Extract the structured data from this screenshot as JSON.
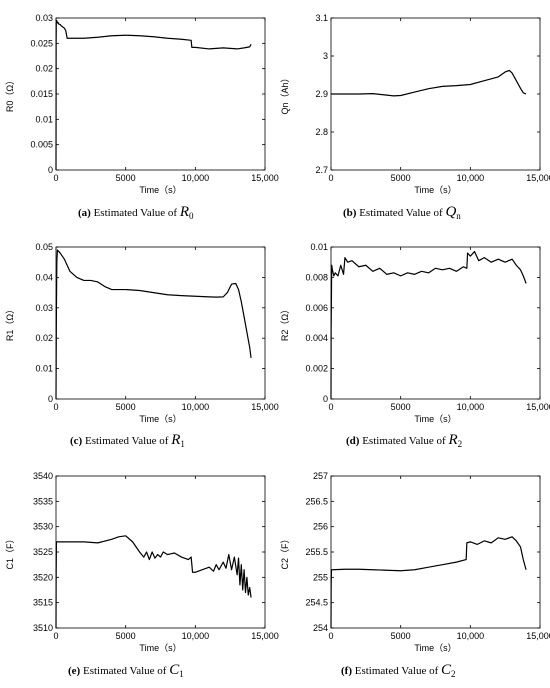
{
  "chart_data": [
    {
      "type": "line",
      "panel_label": "(a)",
      "caption_text": "Estimated Value of",
      "symbol": "R",
      "symbol_sub": "0",
      "ylabel": "R0（Ω）",
      "xlabel": "Time（s）",
      "xlim": [
        0,
        15000
      ],
      "ylim": [
        0,
        0.03
      ],
      "xticks": [
        0,
        5000,
        10000,
        15000
      ],
      "xtick_labels": [
        "0",
        "5000",
        "10,000",
        "15,000"
      ],
      "yticks": [
        0,
        0.005,
        0.01,
        0.015,
        0.02,
        0.025,
        0.03
      ],
      "ytick_labels": [
        "0",
        "0.005",
        "0.01",
        "0.015",
        "0.02",
        "0.025",
        "0.03"
      ],
      "series": [
        {
          "x": [
            0,
            5,
            10,
            20,
            50,
            80,
            120,
            150,
            200,
            300,
            400,
            500,
            600,
            700,
            800,
            1000,
            2000,
            3000,
            4000,
            5000,
            6000,
            7000,
            8000,
            9000,
            9700,
            9750,
            10000,
            11000,
            12000,
            13000,
            13500,
            13900,
            14000
          ],
          "y": [
            0,
            0.012,
            0.025,
            0.029,
            0.0295,
            0.0293,
            0.029,
            0.0291,
            0.0288,
            0.0287,
            0.0284,
            0.0282,
            0.028,
            0.0275,
            0.026,
            0.026,
            0.026,
            0.0262,
            0.0265,
            0.0266,
            0.0265,
            0.0263,
            0.026,
            0.0258,
            0.0256,
            0.0242,
            0.0242,
            0.0239,
            0.0241,
            0.0239,
            0.0241,
            0.0243,
            0.0248
          ]
        }
      ]
    },
    {
      "type": "line",
      "panel_label": "(b)",
      "caption_text": "Estimated Value of",
      "symbol": "Q",
      "symbol_sub": "n",
      "ylabel": "Qn（Ah）",
      "xlabel": "Time（s）",
      "xlim": [
        0,
        15000
      ],
      "ylim": [
        2.7,
        3.1
      ],
      "xticks": [
        0,
        5000,
        10000,
        15000
      ],
      "xtick_labels": [
        "0",
        "5000",
        "10,000",
        "15,000"
      ],
      "yticks": [
        2.7,
        2.8,
        2.9,
        3.0,
        3.1
      ],
      "ytick_labels": [
        "2.7",
        "2.8",
        "2.9",
        "3",
        "3.1"
      ],
      "series": [
        {
          "x": [
            0,
            1000,
            2000,
            3000,
            4000,
            4500,
            5000,
            6000,
            7000,
            8000,
            9000,
            10000,
            11000,
            11500,
            12000,
            12500,
            12800,
            13000,
            13300,
            13600,
            13800,
            14000
          ],
          "y": [
            2.9,
            2.9,
            2.9,
            2.901,
            2.897,
            2.895,
            2.896,
            2.905,
            2.914,
            2.92,
            2.922,
            2.925,
            2.935,
            2.94,
            2.945,
            2.958,
            2.962,
            2.955,
            2.935,
            2.915,
            2.903,
            2.9
          ]
        }
      ]
    },
    {
      "type": "line",
      "panel_label": "(c)",
      "caption_text": "Estimated Value of",
      "symbol": "R",
      "symbol_sub": "1",
      "ylabel": "R1（Ω）",
      "xlabel": "Time（s）",
      "xlim": [
        0,
        15000
      ],
      "ylim": [
        0,
        0.05
      ],
      "xticks": [
        0,
        5000,
        10000,
        15000
      ],
      "xtick_labels": [
        "0",
        "5000",
        "10,000",
        "15,000"
      ],
      "yticks": [
        0,
        0.01,
        0.02,
        0.03,
        0.04,
        0.05
      ],
      "ytick_labels": [
        "0",
        "0.01",
        "0.02",
        "0.03",
        "0.04",
        "0.05"
      ],
      "series": [
        {
          "x": [
            0,
            10,
            30,
            60,
            100,
            300,
            600,
            800,
            1000,
            1500,
            2000,
            2500,
            3000,
            3500,
            4000,
            5000,
            6000,
            7000,
            8000,
            9000,
            10000,
            11000,
            11500,
            12000,
            12300,
            12600,
            12900,
            13100,
            13300,
            13500,
            13700,
            13900,
            14000
          ],
          "y": [
            0,
            0.01,
            0.03,
            0.045,
            0.049,
            0.048,
            0.046,
            0.044,
            0.042,
            0.04,
            0.039,
            0.039,
            0.0385,
            0.037,
            0.036,
            0.036,
            0.0357,
            0.035,
            0.0343,
            0.034,
            0.0338,
            0.0336,
            0.0335,
            0.0336,
            0.035,
            0.0378,
            0.038,
            0.036,
            0.032,
            0.027,
            0.022,
            0.017,
            0.0135
          ]
        }
      ]
    },
    {
      "type": "line",
      "panel_label": "(d)",
      "caption_text": "Estimated Value of",
      "symbol": "R",
      "symbol_sub": "2",
      "ylabel": "R2（Ω）",
      "xlabel": "Time（s）",
      "xlim": [
        0,
        15000
      ],
      "ylim": [
        0,
        0.01
      ],
      "xticks": [
        0,
        5000,
        10000,
        15000
      ],
      "xtick_labels": [
        "0",
        "5000",
        "10,000",
        "15,000"
      ],
      "yticks": [
        0,
        0.002,
        0.004,
        0.006,
        0.008,
        0.01
      ],
      "ytick_labels": [
        "0",
        "0.002",
        "0.004",
        "0.006",
        "0.008",
        "0.01"
      ],
      "series": [
        {
          "x": [
            0,
            10,
            50,
            100,
            200,
            300,
            500,
            700,
            900,
            1000,
            1200,
            1500,
            2000,
            2500,
            3000,
            3500,
            4000,
            4500,
            5000,
            5500,
            6000,
            6500,
            7000,
            7500,
            8000,
            8500,
            9000,
            9500,
            9750,
            9800,
            10000,
            10300,
            10600,
            11000,
            11500,
            12000,
            12500,
            13000,
            13300,
            13600,
            13800,
            14000
          ],
          "y": [
            0,
            0.0045,
            0.0088,
            0.0085,
            0.0081,
            0.0083,
            0.0081,
            0.0088,
            0.0082,
            0.0093,
            0.009,
            0.0091,
            0.0087,
            0.0088,
            0.0084,
            0.0086,
            0.0082,
            0.0083,
            0.0081,
            0.0083,
            0.0082,
            0.0084,
            0.0083,
            0.0086,
            0.0085,
            0.0086,
            0.0084,
            0.0087,
            0.0086,
            0.0096,
            0.0094,
            0.0097,
            0.0091,
            0.0093,
            0.009,
            0.0092,
            0.009,
            0.0092,
            0.0088,
            0.0085,
            0.0081,
            0.0076
          ]
        }
      ]
    },
    {
      "type": "line",
      "panel_label": "(e)",
      "caption_text": "Estimated Value of",
      "symbol": "C",
      "symbol_sub": "1",
      "ylabel": "C1（F）",
      "xlabel": "Time（s）",
      "xlim": [
        0,
        15000
      ],
      "ylim": [
        3510,
        3540
      ],
      "xticks": [
        0,
        5000,
        10000,
        15000
      ],
      "xtick_labels": [
        "0",
        "5000",
        "10,000",
        "15,000"
      ],
      "yticks": [
        3510,
        3515,
        3520,
        3525,
        3530,
        3535,
        3540
      ],
      "ytick_labels": [
        "3510",
        "3515",
        "3520",
        "3525",
        "3530",
        "3535",
        "3540"
      ],
      "series": [
        {
          "x": [
            0,
            10,
            30,
            100,
            1000,
            2000,
            3000,
            4000,
            4500,
            5000,
            5500,
            6000,
            6300,
            6500,
            6700,
            6900,
            7100,
            7300,
            7500,
            7700,
            8000,
            8500,
            9000,
            9500,
            9700,
            9800,
            10000,
            10500,
            11000,
            11300,
            11500,
            11700,
            12000,
            12200,
            12400,
            12600,
            12800,
            13000,
            13100,
            13200,
            13300,
            13400,
            13500,
            13600,
            13700,
            13800,
            13900,
            14000
          ],
          "y": [
            3510,
            3520,
            3527,
            3527,
            3527,
            3527,
            3526.8,
            3527.5,
            3528,
            3528.2,
            3527,
            3525,
            3524,
            3525,
            3523.5,
            3525,
            3523.8,
            3524.5,
            3524,
            3525,
            3524.5,
            3524.8,
            3524,
            3523.5,
            3524,
            3521,
            3521,
            3521.5,
            3522,
            3521.2,
            3522.5,
            3521.5,
            3523,
            3521.8,
            3524.5,
            3521.5,
            3524,
            3520.5,
            3523.8,
            3518.5,
            3522.5,
            3517.5,
            3521.5,
            3517,
            3520,
            3516.5,
            3518,
            3516
          ]
        }
      ]
    },
    {
      "type": "line",
      "panel_label": "(f)",
      "caption_text": "Estimated Value of",
      "symbol": "C",
      "symbol_sub": "2",
      "ylabel": "C2（F）",
      "xlabel": "Time（s）",
      "xlim": [
        0,
        15000
      ],
      "ylim": [
        254,
        257
      ],
      "xticks": [
        0,
        5000,
        10000,
        15000
      ],
      "xtick_labels": [
        "0",
        "5000",
        "10,000",
        "15,000"
      ],
      "yticks": [
        254,
        254.5,
        255,
        255.5,
        256,
        256.5,
        257
      ],
      "ytick_labels": [
        "254",
        "254.5",
        "255",
        "255.5",
        "256",
        "256.5",
        "257"
      ],
      "series": [
        {
          "x": [
            0,
            10,
            30,
            100,
            1000,
            2000,
            3000,
            4000,
            5000,
            6000,
            7000,
            8000,
            9000,
            9700,
            9750,
            10000,
            10500,
            11000,
            11500,
            12000,
            12500,
            13000,
            13300,
            13600,
            13800,
            14000
          ],
          "y": [
            254,
            254.8,
            255.15,
            255.15,
            255.16,
            255.16,
            255.15,
            255.14,
            255.13,
            255.15,
            255.2,
            255.25,
            255.3,
            255.35,
            255.68,
            255.7,
            255.65,
            255.72,
            255.68,
            255.78,
            255.75,
            255.8,
            255.72,
            255.6,
            255.35,
            255.15
          ]
        }
      ]
    }
  ]
}
